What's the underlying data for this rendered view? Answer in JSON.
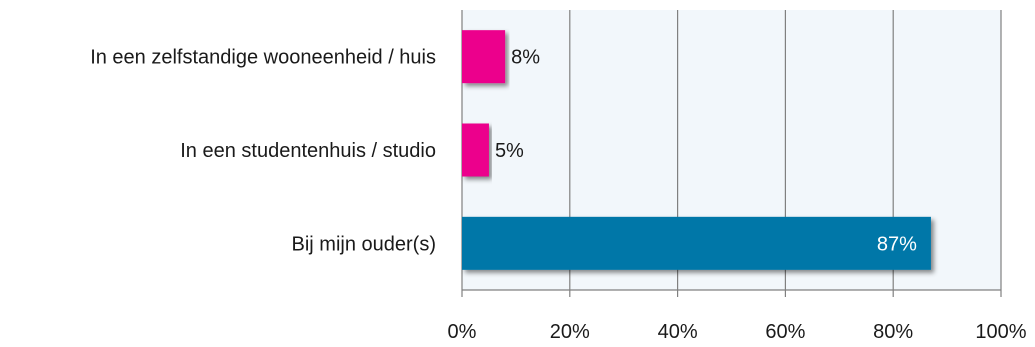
{
  "chart_data": {
    "type": "bar",
    "orientation": "horizontal",
    "categories": [
      "In een zelfstandige wooneenheid / huis",
      "In een studentenhuis / studio",
      "Bij mijn ouder(s)"
    ],
    "values": [
      8,
      5,
      87
    ],
    "value_labels": [
      "8%",
      "5%",
      "87%"
    ],
    "bar_colors": [
      "#ec008c",
      "#ec008c",
      "#0077a8"
    ],
    "value_label_colors": [
      "#1a1a1a",
      "#1a1a1a",
      "#ffffff"
    ],
    "xlim": [
      0,
      100
    ],
    "xticks": [
      0,
      20,
      40,
      60,
      80,
      100
    ],
    "xtick_labels": [
      "0%",
      "20%",
      "40%",
      "60%",
      "80%",
      "100%"
    ],
    "grid": true,
    "plot_background": "#f2f7fb",
    "gridline_color": "#808080",
    "legend": "none",
    "title": "",
    "xlabel": "",
    "ylabel": ""
  }
}
